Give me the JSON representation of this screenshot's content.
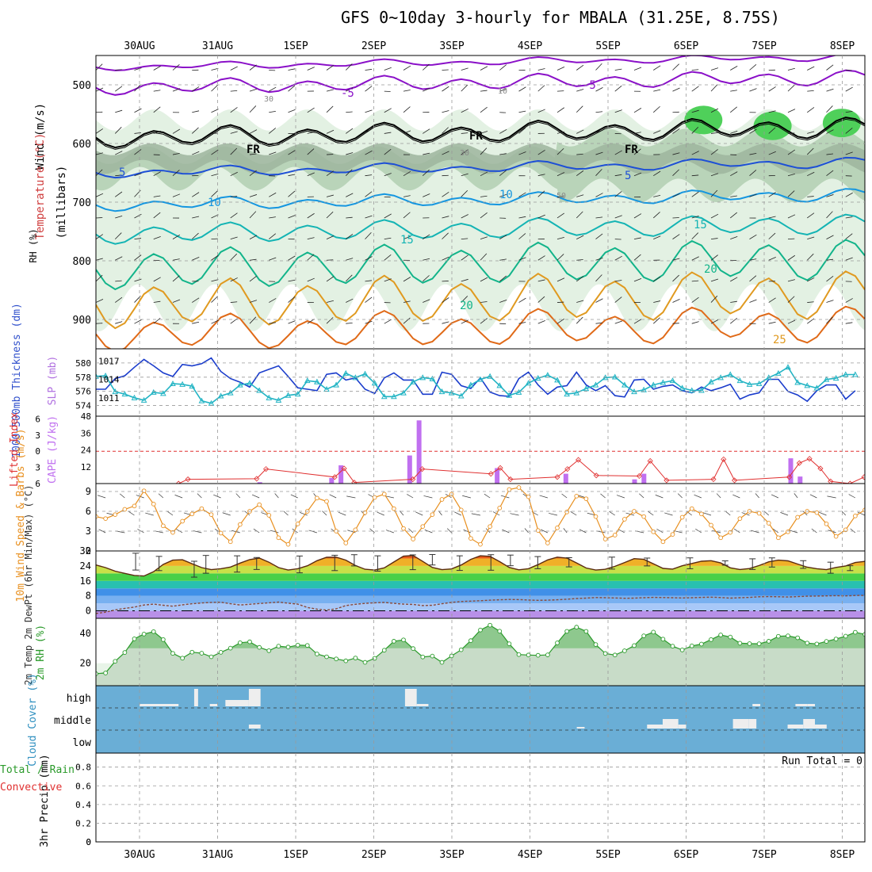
{
  "title": "GFS 0~10day 3-hourly for MBALA (31.25E, 8.75S)",
  "colors": {
    "rh_light": "#e3f1e3",
    "rh_mid": "#b9d4b9",
    "rh_dark": "#9db59d",
    "rh_green": "#4fd05a",
    "freezing": "#000000",
    "t_m5": "#8a10c8",
    "t_5": "#1d4fd6",
    "t_10": "#1596e0",
    "t_15": "#14b4b4",
    "t_20": "#12b48a",
    "t_25": "#e09a20",
    "t_30": "#e06a18",
    "thickness": "#1a3ccc",
    "slp": "#22b4c4",
    "cape": "#c070f0",
    "lifted": "#e03030",
    "wind": "#e89020",
    "cloud": "#6aaed6",
    "rh2m": "#2a9a2a",
    "dew": "#8a4a3a"
  },
  "chart_data": [
    {
      "type": "contour",
      "name": "upper_air",
      "x": [
        "30AUG",
        "31AUG",
        "1SEP",
        "2SEP",
        "3SEP",
        "4SEP",
        "5SEP",
        "6SEP",
        "7SEP",
        "8SEP"
      ],
      "xlabel": "",
      "ylabel": "(millibars)",
      "yticks": [
        500,
        600,
        700,
        800,
        900
      ],
      "ylim": [
        450,
        950
      ],
      "label_wind": "Wind (m/s)",
      "label_temp": "Temperature (°C)",
      "label_rh": "RH (%)",
      "contour_labels": [
        {
          "text": "-5",
          "series": "t_m5"
        },
        {
          "text": "-5",
          "series": "t_m5"
        },
        {
          "text": "FR",
          "series": "freezing"
        },
        {
          "text": "FR",
          "series": "freezing"
        },
        {
          "text": "FR",
          "series": "freezing"
        },
        {
          "text": "5",
          "series": "t_5"
        },
        {
          "text": "5",
          "series": "t_5"
        },
        {
          "text": "10",
          "series": "t_10"
        },
        {
          "text": "10",
          "series": "t_10"
        },
        {
          "text": "15",
          "series": "t_15"
        },
        {
          "text": "15",
          "series": "t_15"
        },
        {
          "text": "20",
          "series": "t_20"
        },
        {
          "text": "20",
          "series": "t_20"
        },
        {
          "text": "25",
          "series": "t_25"
        },
        {
          "text": "30",
          "series": "rh"
        },
        {
          "text": "10",
          "series": "rh"
        },
        {
          "text": "30",
          "series": "rh"
        },
        {
          "text": "50",
          "series": "rh"
        }
      ]
    },
    {
      "type": "line",
      "name": "thickness_slp",
      "label_thickness": "1000-500mb Thickness (dm)",
      "label_slp": "SLP (mb)",
      "left_ticks": [
        574,
        576,
        578,
        580
      ],
      "right_ticks": [
        1011,
        1014,
        1017
      ],
      "thickness": [
        576.3,
        576.3,
        577.8,
        578.2,
        579.4,
        580.5,
        579.6,
        578.6,
        578.1,
        579.8,
        579.6,
        579.9,
        580.7,
        578.8,
        577.8,
        577.3,
        576.6,
        578.6,
        579.1,
        579.6,
        578.1,
        576.5,
        576.3,
        576.1,
        578.4,
        578.6,
        577.6,
        577.9,
        576.3,
        575.7,
        577.9,
        578.6,
        577.6,
        577.6,
        575.6,
        575.6,
        578.7,
        578.4,
        576.8,
        576.4,
        577.9,
        575.9,
        575.4,
        575.3,
        577.8,
        578.7,
        576.9,
        575.6,
        576.6,
        576.8,
        578.7,
        576.9,
        576.1,
        576.8,
        575.4,
        575.2,
        577.6,
        577.7,
        576.3,
        576.7,
        576.9,
        576.1,
        575.8,
        576.6,
        576.1,
        576.5,
        577.0,
        574.9,
        575.5,
        575.8,
        577.7,
        577.7,
        576.0,
        575.5,
        574.6,
        576.1,
        576.9,
        576.9,
        574.9,
        576.1
      ],
      "slp": [
        1014.5,
        1014.6,
        1012.0,
        1011.6,
        1011.0,
        1010.6,
        1011.9,
        1011.7,
        1013.3,
        1013.2,
        1012.9,
        1010.5,
        1010.1,
        1011.3,
        1011.8,
        1013.1,
        1013.4,
        1012.2,
        1011.0,
        1010.6,
        1011.4,
        1011.6,
        1013.8,
        1013.6,
        1012.4,
        1013.1,
        1015.0,
        1014.3,
        1014.9,
        1013.4,
        1011.2,
        1011.2,
        1011.8,
        1013.6,
        1014.3,
        1014.1,
        1012.0,
        1011.8,
        1011.3,
        1013.1,
        1014.0,
        1014.5,
        1013.0,
        1011.4,
        1011.9,
        1013.4,
        1014.2,
        1014.7,
        1013.9,
        1011.6,
        1011.8,
        1012.5,
        1013.1,
        1014.3,
        1014.4,
        1013.1,
        1012.0,
        1012.3,
        1013.1,
        1013.5,
        1013.8,
        1012.6,
        1012.2,
        1012.2,
        1013.6,
        1014.3,
        1014.8,
        1013.8,
        1013.2,
        1013.3,
        1014.3,
        1015.0,
        1016.0,
        1013.5,
        1013.0,
        1012.6,
        1014.0,
        1014.2,
        1014.8,
        1014.8
      ]
    },
    {
      "type": "bar",
      "name": "cape_lifted",
      "label_lifted": "Lifted Index",
      "label_cape": "CAPE (J/kg)",
      "left_ticks": [
        -6,
        -3,
        0,
        3,
        6
      ],
      "right_ticks": [
        12,
        24,
        36,
        48
      ],
      "cape_bars": [
        {
          "day": 1.54,
          "value": 1
        },
        {
          "day": 2.46,
          "value": 4
        },
        {
          "day": 2.58,
          "value": 13
        },
        {
          "day": 3.46,
          "value": 20
        },
        {
          "day": 3.58,
          "value": 45
        },
        {
          "day": 4.58,
          "value": 11
        },
        {
          "day": 5.46,
          "value": 7
        },
        {
          "day": 6.34,
          "value": 3
        },
        {
          "day": 6.46,
          "value": 7
        },
        {
          "day": 8.34,
          "value": 18
        },
        {
          "day": 8.46,
          "value": 5
        }
      ],
      "lifted_index": [
        [
          1.5,
          6
        ],
        [
          1.62,
          5.2
        ],
        [
          2.5,
          5.1
        ],
        [
          2.62,
          3.3
        ],
        [
          3.5,
          4.8
        ],
        [
          3.62,
          3.2
        ],
        [
          3.75,
          5.8
        ],
        [
          4.5,
          5.2
        ],
        [
          4.62,
          3.3
        ],
        [
          5.5,
          4.2
        ],
        [
          5.62,
          3.1
        ],
        [
          5.75,
          5.2
        ],
        [
          6.35,
          4.8
        ],
        [
          6.48,
          3.3
        ],
        [
          6.62,
          1.6
        ],
        [
          6.85,
          4.5
        ],
        [
          7.4,
          4.6
        ],
        [
          7.54,
          1.8
        ],
        [
          7.75,
          5.4
        ],
        [
          8.35,
          5.2
        ],
        [
          8.48,
          1.5
        ],
        [
          8.62,
          5.4
        ],
        [
          9.32,
          4.8
        ],
        [
          9.45,
          2.2
        ],
        [
          9.58,
          1.4
        ],
        [
          9.72,
          3.2
        ],
        [
          9.85,
          5.6
        ],
        [
          10.1,
          6
        ],
        [
          10.28,
          4.8
        ]
      ]
    },
    {
      "type": "line",
      "name": "wind10m",
      "label": "10m Wind Speed & Barbs (m/s)",
      "yticks": [
        0,
        3,
        6,
        9
      ],
      "speed": [
        5.2,
        4.9,
        5.5,
        6.3,
        6.8,
        9.1,
        7.1,
        3.8,
        2.8,
        4.5,
        5.6,
        6.4,
        5.5,
        2.7,
        1.4,
        4.0,
        6.0,
        7.0,
        5.4,
        2.0,
        1.0,
        4.1,
        6.0,
        8.0,
        7.5,
        3.0,
        1.2,
        3.2,
        5.8,
        8.1,
        8.6,
        6.4,
        3.4,
        1.8,
        3.7,
        5.5,
        7.8,
        8.6,
        6.2,
        1.9,
        1.0,
        3.7,
        6.5,
        9.3,
        9.6,
        8.2,
        3.1,
        1.2,
        3.5,
        5.9,
        8.3,
        7.9,
        5.2,
        1.8,
        2.4,
        4.8,
        6.0,
        5.2,
        2.9,
        1.4,
        2.5,
        5.1,
        6.4,
        5.6,
        3.9,
        2.0,
        2.8,
        4.9,
        6.0,
        5.7,
        4.2,
        2.0,
        2.9,
        5.1,
        6.0,
        5.8,
        4.1,
        2.2,
        3.2,
        5.3,
        6.2
      ]
    },
    {
      "type": "area",
      "name": "temp2m",
      "label": "2m Temp 2m DewPt (6hr Min/Max) (°C)",
      "yticks": [
        0,
        8,
        16,
        24,
        32
      ],
      "temp": [
        24.5,
        23.1,
        21.2,
        20.0,
        18.9,
        18.6,
        20.9,
        24.8,
        27.1,
        27.3,
        25.2,
        23.1,
        22.0,
        22.5,
        23.4,
        25.5,
        27.4,
        28.2,
        26.0,
        23.1,
        21.8,
        22.5,
        24.1,
        26.8,
        28.6,
        28.7,
        27.1,
        24.2,
        22.2,
        21.8,
        23.0,
        26.1,
        29.2,
        29.6,
        26.4,
        23.2,
        22.0,
        22.4,
        24.5,
        27.5,
        29.4,
        29.1,
        26.3,
        23.2,
        21.9,
        22.5,
        24.7,
        27.2,
        28.7,
        28.2,
        25.6,
        22.9,
        21.8,
        22.2,
        23.8,
        25.8,
        27.9,
        27.5,
        25.1,
        22.7,
        22.3,
        24.1,
        25.3,
        26.5,
        26.8,
        25.6,
        23.0,
        22.1,
        22.6,
        24.2,
        26.2,
        27.1,
        26.7,
        25.0,
        23.3,
        22.5,
        22.0,
        23.2,
        24.0,
        25.8,
        26.4
      ],
      "dew": [
        -1.4,
        -0.7,
        0.5,
        1.3,
        2.0,
        3.1,
        3.6,
        3.0,
        2.5,
        3.2,
        3.8,
        4.2,
        4.5,
        4.6,
        3.8,
        3.1,
        3.5,
        3.9,
        4.3,
        4.7,
        4.1,
        3.6,
        1.8,
        0.9,
        0.4,
        1.1,
        2.8,
        3.5,
        4.0,
        4.3,
        4.5,
        4.0,
        3.6,
        3.4,
        2.8,
        3.0,
        3.8,
        4.5,
        5.0,
        5.2,
        5.4,
        5.7,
        5.9,
        6.1,
        6.0,
        5.8,
        5.6,
        5.7,
        5.9,
        6.2,
        6.6,
        6.8,
        7.1,
        7.0,
        6.9,
        6.7,
        6.8,
        7.0,
        7.2,
        7.1,
        7.0,
        6.9,
        7.0,
        7.2,
        7.3,
        7.1,
        6.8,
        7.0,
        7.2,
        7.5,
        7.6,
        7.5,
        7.4,
        7.6,
        7.8,
        7.9,
        8.0,
        8.1,
        8.0,
        8.2,
        8.3
      ],
      "maxmin_days": [
        0.2,
        0.5,
        0.95,
        1.1,
        1.5,
        1.75,
        2.3,
        2.75,
        3.0,
        3.3,
        3.75,
        4.0,
        4.35,
        4.75,
        5.0,
        5.35,
        5.75,
        6.3,
        6.75,
        7.3,
        7.75,
        8.1,
        8.35,
        8.75,
        9.1,
        9.35
      ],
      "maxmin_high": [
        30.8,
        29.1,
        26.5,
        29.6,
        29.4,
        28.5,
        29.3,
        29.7,
        30.0,
        29.4,
        29.9,
        30.1,
        29.4,
        30.0,
        29.8,
        29.0,
        28.4,
        28.7,
        28.2,
        28.3,
        26.7,
        27.8,
        28.3,
        26.8,
        26.0,
        24.1
      ],
      "maxmin_low": [
        21.8,
        21.5,
        18.0,
        20.1,
        20.7,
        22.1,
        20.3,
        21.5,
        24.0,
        21.2,
        22.0,
        24.5,
        21.6,
        21.7,
        24.1,
        22.5,
        23.5,
        22.3,
        24.0,
        22.5,
        24.4,
        22.1,
        23.4,
        22.7,
        20.1,
        21.5
      ]
    },
    {
      "type": "area",
      "name": "rh2m",
      "label": "2m RH (%)",
      "yticks": [
        20,
        40
      ],
      "values": [
        13.0,
        13.5,
        21.3,
        27.2,
        36.3,
        39.5,
        41.1,
        35.8,
        26.6,
        23.4,
        27.4,
        26.7,
        24.3,
        27.3,
        30.1,
        33.7,
        34.3,
        30.6,
        28.4,
        31.4,
        30.8,
        32.1,
        31.9,
        26.2,
        24.3,
        22.9,
        21.6,
        23.5,
        20.6,
        23.3,
        28.7,
        34.7,
        35.6,
        29.8,
        24.2,
        24.8,
        20.6,
        24.9,
        29.0,
        35.1,
        42.2,
        45.4,
        41.4,
        33.0,
        25.8,
        25.5,
        25.3,
        25.6,
        33.6,
        41.3,
        44.1,
        41.3,
        32.5,
        26.5,
        25.5,
        28.3,
        31.8,
        38.3,
        40.8,
        36.1,
        31.4,
        28.9,
        31.6,
        32.8,
        35.8,
        38.9,
        37.5,
        33.4,
        33.1,
        33.0,
        34.7,
        38.0,
        38.3,
        37.0,
        33.5,
        32.9,
        34.6,
        36.2,
        38.1,
        40.7,
        39.3
      ]
    },
    {
      "type": "bar",
      "name": "cloud_cover",
      "label": "Cloud Cover (%)",
      "levels": [
        "high",
        "middle",
        "low"
      ]
    },
    {
      "type": "line",
      "name": "precip",
      "label_total": "Total / Rain",
      "label_conv": "Convective",
      "ylabel": "3hr Precip (mm)",
      "yticks": [
        0,
        0.2,
        0.4,
        0.6,
        0.8
      ],
      "run_total": "Run Total = 0"
    }
  ]
}
